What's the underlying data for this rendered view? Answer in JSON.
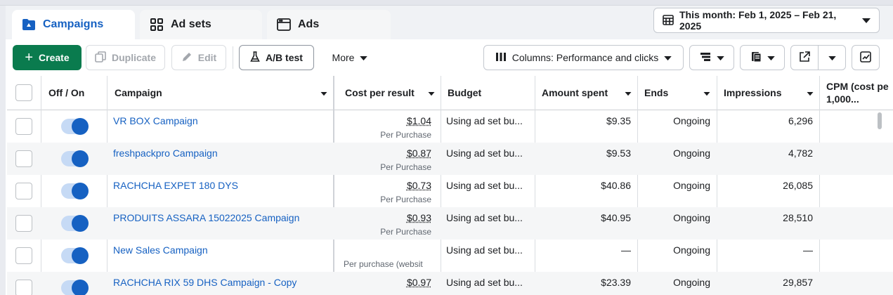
{
  "tabs": [
    {
      "label": "Campaigns",
      "icon": "folder-icon",
      "active": true
    },
    {
      "label": "Ad sets",
      "icon": "grid-icon",
      "active": false
    },
    {
      "label": "Ads",
      "icon": "ad-card-icon",
      "active": false
    }
  ],
  "date_range": {
    "label": "This month: Feb 1, 2025 – Feb 21, 2025",
    "icon": "calendar-icon"
  },
  "toolbar": {
    "create": "Create",
    "duplicate": "Duplicate",
    "edit": "Edit",
    "ab_test": "A/B test",
    "more": "More",
    "columns": "Columns: Performance and clicks"
  },
  "columns": {
    "off_on": "Off / On",
    "campaign": "Campaign",
    "cost_per_result": "Cost per result",
    "budget": "Budget",
    "amount_spent": "Amount spent",
    "ends": "Ends",
    "impressions": "Impressions",
    "cpm": "CPM (cost pe",
    "cpm_line2": "1,000..."
  },
  "rows": [
    {
      "name": "VR BOX Campaign",
      "cost": "$1.04",
      "cost_sub": "Per Purchase",
      "budget": "Using ad set bu...",
      "spent": "$9.35",
      "ends": "Ongoing",
      "impressions": "6,296",
      "on": true
    },
    {
      "name": "freshpackpro Campaign",
      "cost": "$0.87",
      "cost_sub": "Per Purchase",
      "budget": "Using ad set bu...",
      "spent": "$9.53",
      "ends": "Ongoing",
      "impressions": "4,782",
      "on": true
    },
    {
      "name": "RACHCHA EXPET 180 DYS",
      "cost": "$0.73",
      "cost_sub": "Per Purchase",
      "budget": "Using ad set bu...",
      "spent": "$40.86",
      "ends": "Ongoing",
      "impressions": "26,085",
      "on": true
    },
    {
      "name": "PRODUITS ASSARA 15022025 Campaign",
      "cost": "$0.93",
      "cost_sub": "Per Purchase",
      "budget": "Using ad set bu...",
      "spent": "$40.95",
      "ends": "Ongoing",
      "impressions": "28,510",
      "on": true
    },
    {
      "name": "New Sales Campaign",
      "cost": "",
      "cost_sub": "Per purchase (websit",
      "budget": "Using ad set bu...",
      "spent": "—",
      "ends": "Ongoing",
      "impressions": "—",
      "on": true
    },
    {
      "name": "RACHCHA RIX 59 DHS Campaign - Copy",
      "cost": "$0.97",
      "cost_sub": "",
      "budget": "Using ad set bu...",
      "spent": "$23.39",
      "ends": "Ongoing",
      "impressions": "29,857",
      "on": true
    }
  ]
}
